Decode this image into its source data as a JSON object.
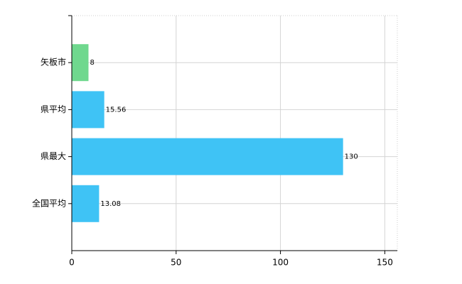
{
  "chart_data": {
    "type": "bar",
    "orientation": "horizontal",
    "categories": [
      "矢板市",
      "県平均",
      "県最大",
      "全国平均"
    ],
    "values": [
      8,
      15.56,
      130,
      13.08
    ],
    "colors": [
      "#6fd88e",
      "#3fc3f5",
      "#3fc3f5",
      "#3fc3f5"
    ],
    "xlim": [
      0,
      156
    ],
    "xticks": [
      0,
      50,
      100,
      150
    ],
    "grid": true
  }
}
